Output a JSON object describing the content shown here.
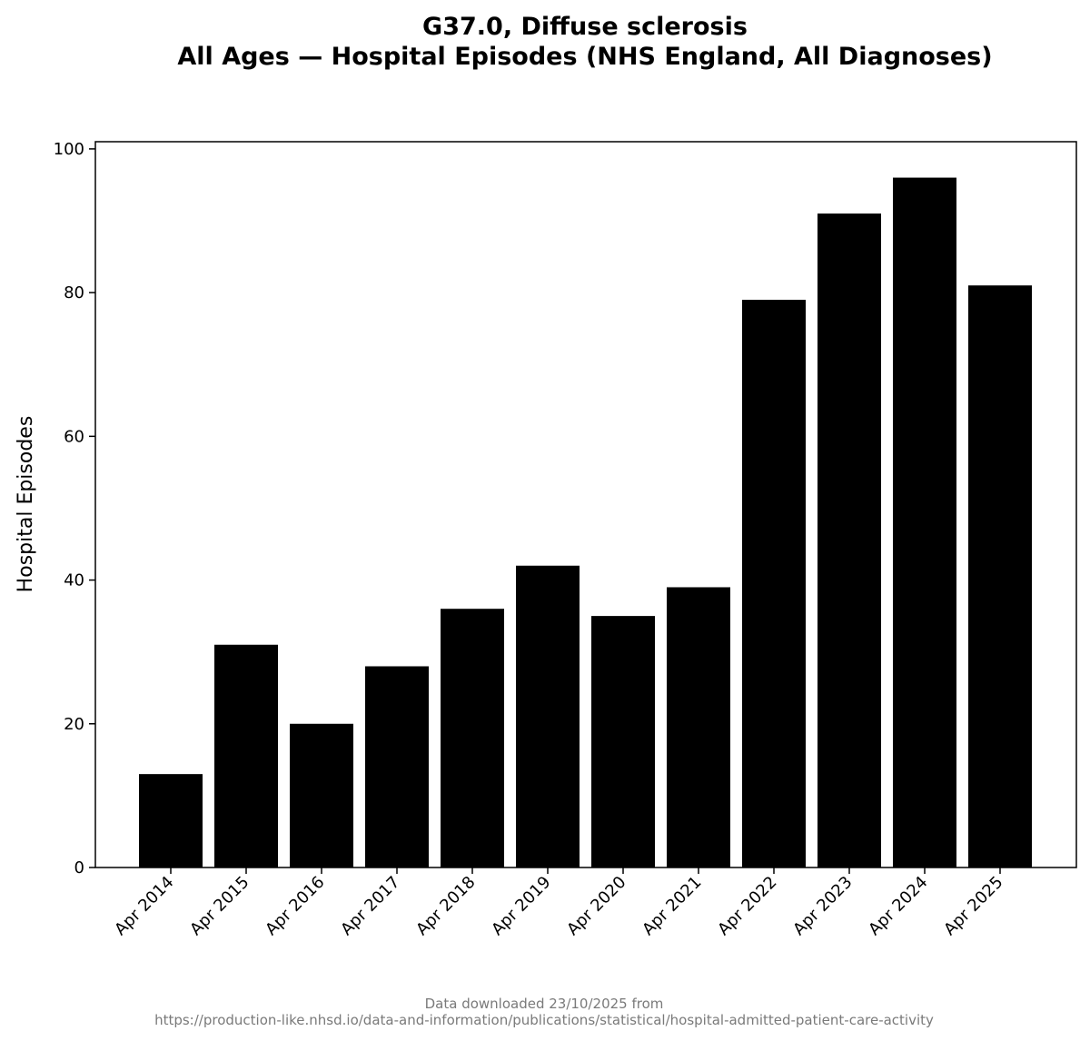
{
  "chart_data": {
    "type": "bar",
    "title": "G37.0, Diffuse sclerosis",
    "subtitle": "All Ages — Hospital Episodes (NHS England, All Diagnoses)",
    "xlabel": "",
    "ylabel": "Hospital Episodes",
    "categories": [
      "Apr 2014",
      "Apr 2015",
      "Apr 2016",
      "Apr 2017",
      "Apr 2018",
      "Apr 2019",
      "Apr 2020",
      "Apr 2021",
      "Apr 2022",
      "Apr 2023",
      "Apr 2024",
      "Apr 2025"
    ],
    "values": [
      13,
      31,
      20,
      28,
      36,
      42,
      35,
      39,
      79,
      91,
      96,
      81
    ],
    "ylim": [
      0,
      101
    ],
    "yticks": [
      0,
      20,
      40,
      60,
      80,
      100
    ],
    "bar_color": "#000000",
    "grid": false,
    "legend": "none"
  },
  "footer": {
    "line1": "Data downloaded 23/10/2025 from",
    "line2": "https://production-like.nhsd.io/data-and-information/publications/statistical/hospital-admitted-patient-care-activity"
  }
}
